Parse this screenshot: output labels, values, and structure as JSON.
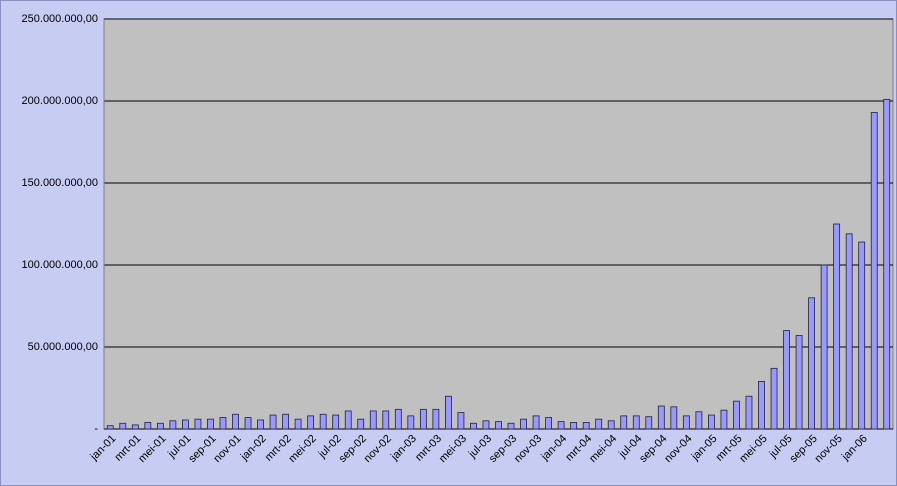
{
  "chart_data": {
    "type": "bar",
    "categories": [
      "jan-01",
      null,
      "mrt-01",
      null,
      "mei-01",
      null,
      "jul-01",
      null,
      "sep-01",
      null,
      "nov-01",
      null,
      "jan-02",
      null,
      "mrt-02",
      null,
      "mei-02",
      null,
      "jul-02",
      null,
      "sep-02",
      null,
      "nov-02",
      null,
      "jan-03",
      null,
      "mrt-03",
      null,
      "mei-03",
      null,
      "jul-03",
      null,
      "sep-03",
      null,
      "nov-03",
      null,
      "jan-04",
      null,
      "mrt-04",
      null,
      "mei-04",
      null,
      "jul-04",
      null,
      "sep-04",
      null,
      "nov-04",
      null,
      "jan-05",
      null,
      "mrt-05",
      null,
      "mei-05",
      null,
      "jul-05",
      null,
      "sep-05",
      null,
      "nov-05",
      null,
      "jan-06",
      null,
      null
    ],
    "values": [
      2000000,
      3500000,
      2500000,
      4000000,
      3500000,
      5000000,
      5500000,
      6000000,
      6000000,
      7000000,
      9000000,
      7000000,
      5500000,
      8500000,
      9000000,
      6000000,
      8000000,
      9000000,
      8500000,
      11000000,
      6000000,
      11000000,
      11000000,
      12000000,
      8000000,
      12000000,
      12000000,
      20000000,
      10000000,
      3500000,
      5000000,
      4500000,
      3500000,
      6000000,
      8000000,
      7000000,
      4500000,
      4000000,
      4000000,
      6000000,
      5000000,
      8000000,
      8000000,
      7500000,
      14000000,
      13500000,
      8000000,
      10500000,
      8500000,
      11500000,
      17000000,
      20000000,
      29000000,
      37000000,
      60000000,
      57000000,
      80000000,
      100000000,
      125000000,
      119000000,
      114000000,
      193000000,
      201000000
    ],
    "color": "#9999ff",
    "ylim": [
      0,
      250000000
    ],
    "yticks": [
      {
        "value": 0,
        "label": "-"
      },
      {
        "value": 50000000,
        "label": "50.000.000,00"
      },
      {
        "value": 100000000,
        "label": "100.000.000,00"
      },
      {
        "value": 150000000,
        "label": "150.000.000,00"
      },
      {
        "value": 200000000,
        "label": "200.000.000,00"
      },
      {
        "value": 250000000,
        "label": "250.000.000,00"
      }
    ],
    "grid": true
  }
}
